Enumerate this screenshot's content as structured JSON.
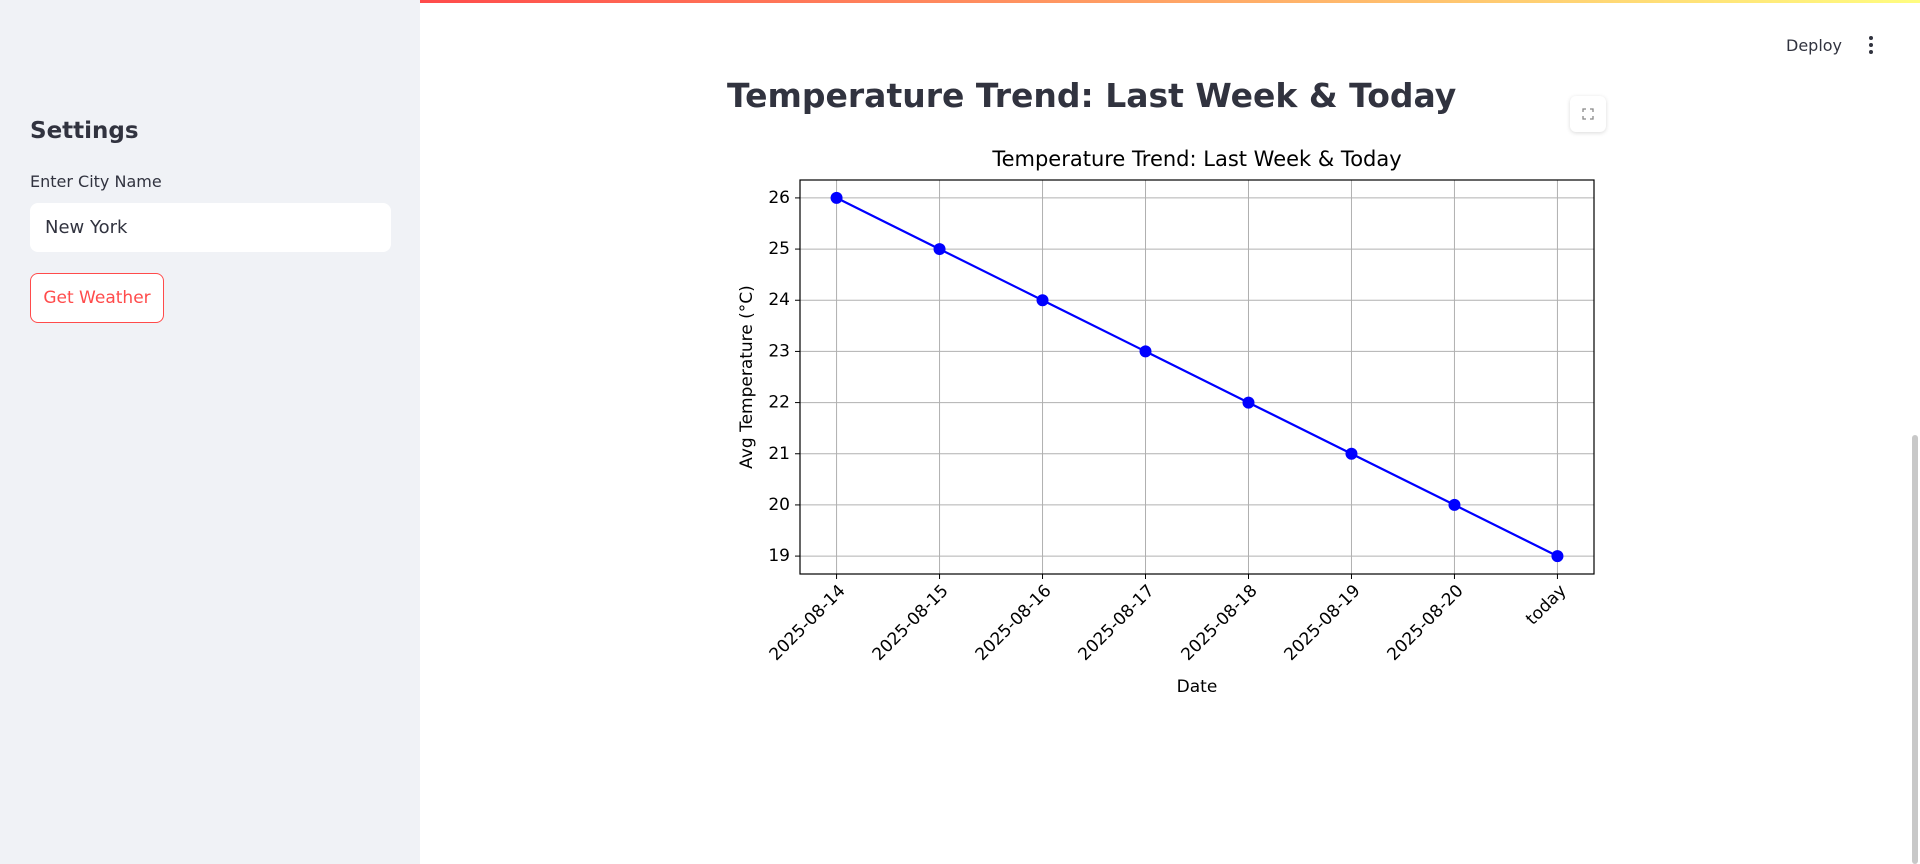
{
  "app": {
    "deploy": "Deploy",
    "heading": "Temperature Trend: Last Week & Today",
    "sidebar": {
      "title": "Settings",
      "input_label": "Enter City Name",
      "input_value": "New York",
      "button": "Get Weather"
    }
  },
  "chart_data": {
    "type": "line",
    "title": "Temperature Trend: Last Week & Today",
    "x_label": "Date",
    "y_label": "Avg Temperature (°C)",
    "categories": [
      "2025-08-14",
      "2025-08-15",
      "2025-08-16",
      "2025-08-17",
      "2025-08-18",
      "2025-08-19",
      "2025-08-20",
      "today"
    ],
    "values": [
      26,
      25,
      24,
      23,
      22,
      21,
      20,
      19
    ],
    "color": "#0000ff",
    "ylim": [
      18.65,
      26.35
    ],
    "yticks": [
      19,
      20,
      21,
      22,
      23,
      24,
      25,
      26
    ],
    "grid": true
  }
}
